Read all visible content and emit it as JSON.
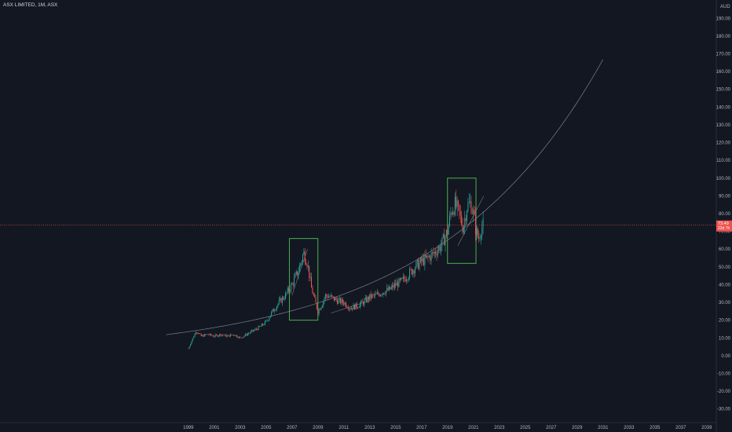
{
  "header": {
    "symbol": "ASX LIMITED",
    "interval": "1M",
    "exchange": "ASX",
    "currency": "AUD"
  },
  "price_label": {
    "last": "73.49",
    "countdown": "22d 7h"
  },
  "colors": {
    "background": "#131722",
    "up": "#26a69a",
    "down": "#ef5350",
    "box": "#4caf50",
    "curve": "#9ea3ad",
    "price_line": "#ef5350"
  },
  "chart_data": {
    "type": "candlestick",
    "title": "ASX LIMITED, 1M, ASX",
    "ylabel": "AUD",
    "ylim": [
      -35,
      195
    ],
    "xlim": [
      1997.5,
      2039.5
    ],
    "y_ticks": [
      -30,
      -20,
      -10,
      0,
      10,
      20,
      30,
      40,
      50,
      60,
      70,
      80,
      90,
      100,
      110,
      120,
      130,
      140,
      150,
      160,
      170,
      180,
      190
    ],
    "x_ticks": [
      1999,
      2001,
      2003,
      2005,
      2007,
      2009,
      2011,
      2013,
      2015,
      2017,
      2019,
      2021,
      2023,
      2025,
      2027,
      2029,
      2031,
      2033,
      2035,
      2037,
      2039
    ],
    "last_price": 73.49,
    "price_path": [
      [
        1999.0,
        4
      ],
      [
        1999.3,
        9
      ],
      [
        1999.6,
        14
      ],
      [
        2000.0,
        11
      ],
      [
        2000.5,
        12
      ],
      [
        2001.0,
        11
      ],
      [
        2001.5,
        12
      ],
      [
        2002.0,
        11
      ],
      [
        2002.5,
        12
      ],
      [
        2003.0,
        10
      ],
      [
        2003.5,
        12
      ],
      [
        2004.0,
        14
      ],
      [
        2004.5,
        16
      ],
      [
        2005.0,
        19
      ],
      [
        2005.5,
        25
      ],
      [
        2006.0,
        30
      ],
      [
        2006.5,
        34
      ],
      [
        2007.0,
        40
      ],
      [
        2007.5,
        48
      ],
      [
        2007.9,
        58
      ],
      [
        2008.2,
        52
      ],
      [
        2008.5,
        38
      ],
      [
        2008.8,
        30
      ],
      [
        2009.0,
        25
      ],
      [
        2009.3,
        29
      ],
      [
        2009.6,
        34
      ],
      [
        2010.0,
        33
      ],
      [
        2010.5,
        31
      ],
      [
        2011.0,
        30
      ],
      [
        2011.5,
        27
      ],
      [
        2012.0,
        28
      ],
      [
        2012.5,
        30
      ],
      [
        2013.0,
        33
      ],
      [
        2013.5,
        34
      ],
      [
        2014.0,
        36
      ],
      [
        2014.5,
        37
      ],
      [
        2015.0,
        40
      ],
      [
        2015.5,
        42
      ],
      [
        2016.0,
        46
      ],
      [
        2016.5,
        50
      ],
      [
        2017.0,
        53
      ],
      [
        2017.5,
        55
      ],
      [
        2018.0,
        58
      ],
      [
        2018.5,
        62
      ],
      [
        2019.0,
        70
      ],
      [
        2019.3,
        82
      ],
      [
        2019.6,
        85
      ],
      [
        2019.9,
        80
      ],
      [
        2020.2,
        72
      ],
      [
        2020.5,
        84
      ],
      [
        2020.8,
        86
      ],
      [
        2021.0,
        80
      ],
      [
        2021.2,
        70
      ],
      [
        2021.4,
        66
      ],
      [
        2021.6,
        72
      ],
      [
        2021.75,
        73.49
      ]
    ],
    "annotations": {
      "rectangles": [
        {
          "x": [
            2006.8,
            2009.0
          ],
          "y": [
            20,
            66
          ]
        },
        {
          "x": [
            2019.0,
            2021.2
          ],
          "y": [
            52,
            100
          ]
        }
      ],
      "curve": {
        "from": 1997.3,
        "to": 2031.0,
        "x0": 2006.3,
        "y_at_x0": 24,
        "growth_per_year": 0.0785
      },
      "lines": [
        {
          "x": [
            2007.0,
            2008.2
          ],
          "y": [
            34,
            60
          ]
        },
        {
          "x": [
            2010.0,
            2013.0
          ],
          "y": [
            24,
            31
          ]
        },
        {
          "x": [
            2019.8,
            2021.8
          ],
          "y": [
            62,
            90
          ]
        }
      ]
    },
    "grid": false
  }
}
